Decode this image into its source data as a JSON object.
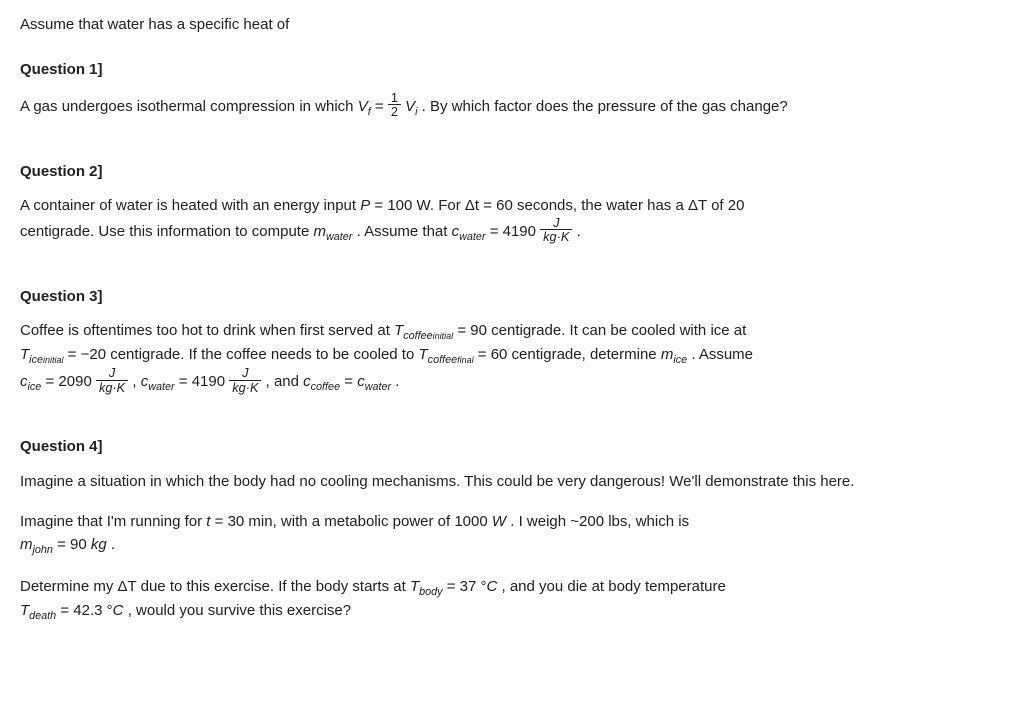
{
  "intro": "Assume that water has a specific heat of",
  "q1": {
    "heading": "Question 1]",
    "text1": "A gas undergoes isothermal compression in which ",
    "eq1_lhs": "V",
    "eq1_lhs_sub": "f",
    "eq1_eq": " = ",
    "frac_num": "1",
    "frac_den": "2",
    "eq1_rhs": "V",
    "eq1_rhs_sub": "i",
    "text2": ". By which factor does the pressure of the gas change?"
  },
  "q2": {
    "heading": "Question 2]",
    "t1": "A container of water is heated with an energy input ",
    "P": "P",
    "eq": " = ",
    "Pval": " 100 W. For ",
    "dt": "Δt",
    "dtval": " 60 ",
    "t2": "seconds, the water has a ",
    "dT": "ΔT",
    "t3": " of 20",
    "t4": "centigrade. Use this information to compute ",
    "mwater": "m",
    "mwater_sub": "water",
    "t5": " . Assume that ",
    "cwater": "c",
    "cwater_sub": "water",
    "cval": " 4190",
    "frac_num": "J",
    "frac_den": "kg·K",
    "dot": " ."
  },
  "q3": {
    "heading": "Question 3]",
    "t1": "Coffee is oftentimes too hot to drink when first served at ",
    "Tcof": "T",
    "Tcof_sub": "coffee",
    "Tcof_sub2": "initial",
    "val1": " = 90 centigrade. It can be cooled with ice at",
    "Tice": "T",
    "Tice_sub": "ice",
    "Tice_sub2": "initial",
    "val2": " = −20 centigrade. If the coffee needs to be cooled to ",
    "Tcof2": "T",
    "Tcof2_sub": "coffee",
    "Tcof2_sub2": "final",
    "val3": " = 60 centigrade, determine ",
    "mice": "m",
    "mice_sub": "ice",
    "t2": " . Assume",
    "cice": "c",
    "cice_sub": "ice",
    "cice_val": " = 2090 ",
    "frac_num": "J",
    "frac_den": "kg·K",
    "comma": " , ",
    "cwater": "c",
    "cwater_sub": "water",
    "cwater_val": " = 4190 ",
    "and": " , and ",
    "ccof": "c",
    "ccof_sub": "coffee",
    "eq": " = ",
    "cwater2": "c",
    "cwater2_sub": "water",
    "dot": " ."
  },
  "q4": {
    "heading": "Question 4]",
    "p1": "Imagine a situation in which the body had no cooling mechanisms. This could be very dangerous! We'll demonstrate this here.",
    "t1": "Imagine that I'm running for ",
    "t": "t",
    "tval": " = 30  min, with a metabolic power of 1000 ",
    "W": "W",
    "t2": ". I weigh ~200 lbs, which is",
    "mjohn": "m",
    "mjohn_sub": "john",
    "mval": " =  90 ",
    "kg": "kg",
    "dot": ".",
    "t3": "Determine my ",
    "dT": "ΔT",
    "t4": " due to this exercise. If the body starts at ",
    "Tbody": "T",
    "Tbody_sub": "body",
    "Tbody_val": " = 37 °",
    "C": "C",
    "t5": ", and you die at body temperature",
    "Tdeath": "T",
    "Tdeath_sub": "death",
    "Tdeath_val": " = 42.3 °",
    "t6": ", would you survive this exercise?"
  }
}
